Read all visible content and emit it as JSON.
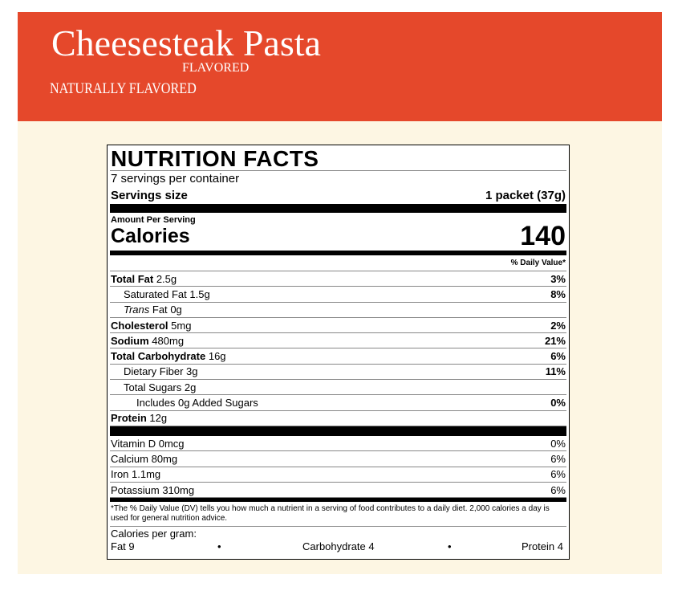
{
  "header": {
    "title": "Cheesesteak Pasta",
    "flavored": "FLAVORED",
    "tagline": "NATURALLY FLAVORED"
  },
  "nutrition": {
    "title": "NUTRITION FACTS",
    "servings_per_container": "7 servings per container",
    "serving_size_label": "Servings size",
    "serving_size_value": "1 packet (37g)",
    "amount_per_serving": "Amount Per Serving",
    "calories_label": "Calories",
    "calories_value": 140,
    "dv_header": "% Daily Value*",
    "nutrients": [
      {
        "name": "Total Fat",
        "amount": "2.5g",
        "dv": "3%"
      },
      {
        "name": "Saturated Fat",
        "amount": "1.5g",
        "dv": "8%"
      },
      {
        "italic_prefix": "Trans",
        "name": "Fat",
        "amount": "0g"
      },
      {
        "name": "Cholesterol",
        "amount": "5mg",
        "dv": "2%"
      },
      {
        "name": "Sodium",
        "amount": "480mg",
        "dv": "21%"
      },
      {
        "name": "Total Carbohydrate",
        "amount": "16g",
        "dv": "6%"
      },
      {
        "name": "Dietary Fiber",
        "amount": "3g",
        "dv": "11%"
      },
      {
        "name": "Total Sugars",
        "amount": "2g"
      },
      {
        "name": "Includes",
        "amount": "0g Added Sugars",
        "dv": "0%"
      },
      {
        "name": "Protein",
        "amount": "12g"
      }
    ],
    "vitamins": [
      {
        "name": "Vitamin D",
        "amount": "0mcg",
        "dv": "0%"
      },
      {
        "name": "Calcium",
        "amount": "80mg",
        "dv": "6%"
      },
      {
        "name": "Iron",
        "amount": "1.1mg",
        "dv": "6%"
      },
      {
        "name": "Potassium",
        "amount": "310mg",
        "dv": "6%"
      }
    ],
    "footnote": "*The % Daily Value (DV) tells you how much a nutrient in a serving of food contributes to a daily diet. 2,000 calories a day is used for general nutrition advice.",
    "calories_per_gram_label": "Calories per gram:",
    "calories_per_gram": [
      "Fat 9",
      "Carbohydrate 4",
      "Protein 4"
    ]
  }
}
